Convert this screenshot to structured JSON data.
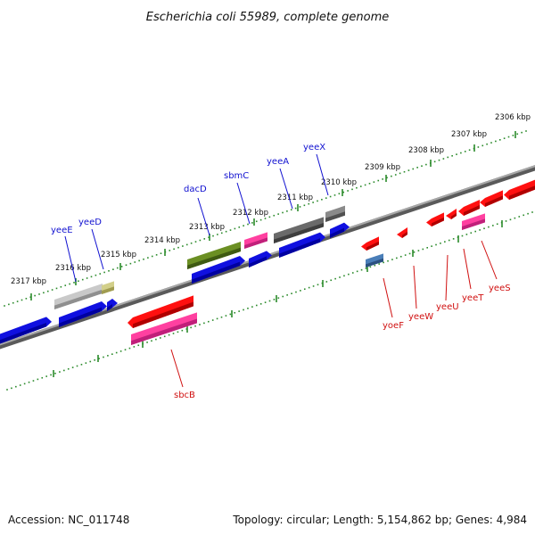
{
  "title": "Escherichia coli 55989, complete genome",
  "footer": {
    "accession": "Accession: NC_011748",
    "summary": "Topology: circular; Length: 5,154,862 bp; Genes: 4,984"
  },
  "colors": {
    "top_label": "#1010d0",
    "bottom_label": "#d01010",
    "ruler": "#2a8a2a",
    "backbone": "#808080"
  },
  "kbp_ticks": [
    {
      "label": "2317 kbp"
    },
    {
      "label": "2316 kbp"
    },
    {
      "label": "2315 kbp"
    },
    {
      "label": "2314 kbp"
    },
    {
      "label": "2313 kbp"
    },
    {
      "label": "2312 kbp"
    },
    {
      "label": "2311 kbp"
    },
    {
      "label": "2310 kbp"
    },
    {
      "label": "2309 kbp"
    },
    {
      "label": "2308 kbp"
    },
    {
      "label": "2307 kbp"
    },
    {
      "label": "2306 kbp"
    }
  ],
  "top_genes": [
    {
      "name": "yeeE"
    },
    {
      "name": "yeeD"
    },
    {
      "name": "dacD"
    },
    {
      "name": "sbmC"
    },
    {
      "name": "yeeA"
    },
    {
      "name": "yeeX"
    }
  ],
  "bottom_genes": [
    {
      "name": "sbcB"
    },
    {
      "name": "yoeF"
    },
    {
      "name": "yeeW"
    },
    {
      "name": "yeeU"
    },
    {
      "name": "yeeT"
    },
    {
      "name": "yeeS"
    }
  ]
}
